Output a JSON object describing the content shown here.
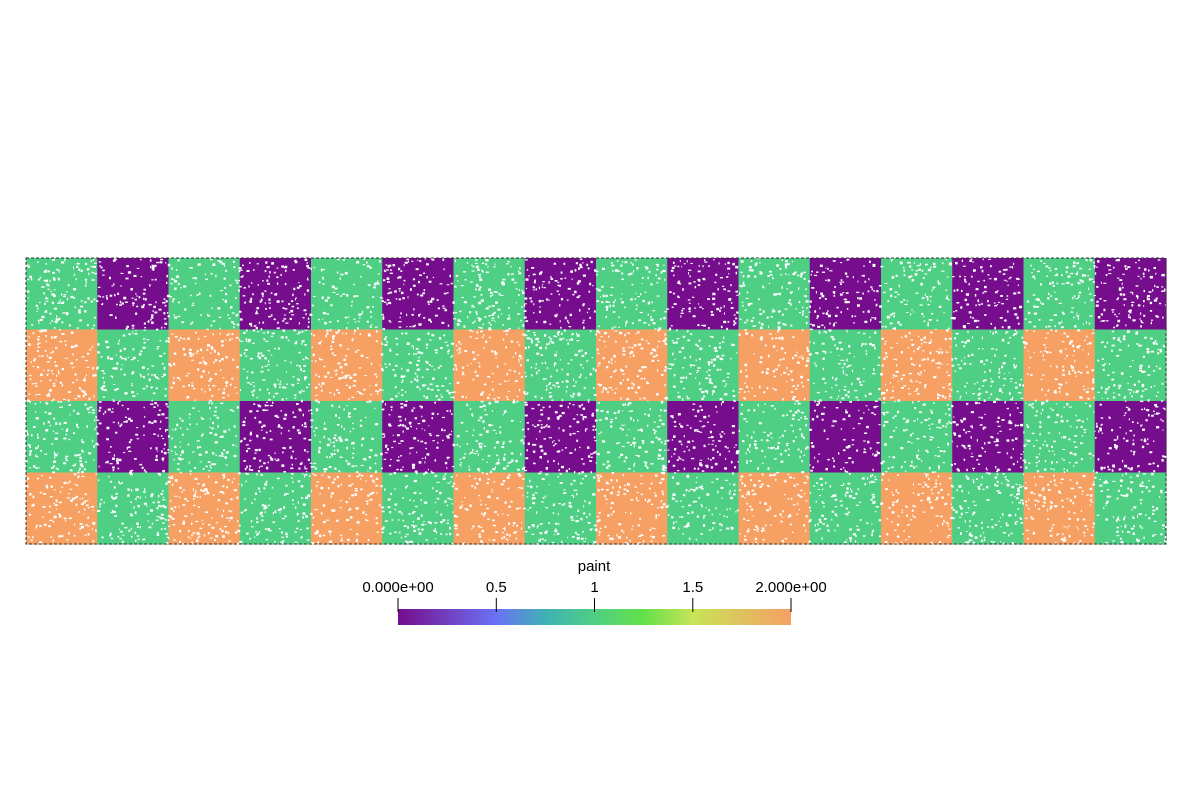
{
  "scene": {
    "field_name": "paint",
    "grid": {
      "columns": 16,
      "rows": 4,
      "cell_values": [
        [
          1,
          0,
          1,
          0,
          1,
          0,
          1,
          0,
          1,
          0,
          1,
          0,
          1,
          0,
          1,
          0
        ],
        [
          2,
          1,
          2,
          1,
          2,
          1,
          2,
          1,
          2,
          1,
          2,
          1,
          2,
          1,
          2,
          1
        ],
        [
          1,
          0,
          1,
          0,
          1,
          0,
          1,
          0,
          1,
          0,
          1,
          0,
          1,
          0,
          1,
          0
        ],
        [
          2,
          1,
          2,
          1,
          2,
          1,
          2,
          1,
          2,
          1,
          2,
          1,
          2,
          1,
          2,
          1
        ]
      ]
    },
    "colors": {
      "value_0": "#760d8c",
      "value_1": "#4fcf84",
      "value_2": "#f6a064",
      "background": "#ffffff",
      "speckle": "#ffffff"
    }
  },
  "color_bar": {
    "title": "paint",
    "range": [
      0,
      2
    ],
    "ticks": [
      {
        "value": 0,
        "label": "0.000e+00"
      },
      {
        "value": 0.5,
        "label": "0.5"
      },
      {
        "value": 1,
        "label": "1"
      },
      {
        "value": 1.5,
        "label": "1.5"
      },
      {
        "value": 2,
        "label": "2.000e+00"
      }
    ],
    "gradient_stops": [
      {
        "value": 0,
        "color": "#760d8c"
      },
      {
        "value": 0.5,
        "color": "#6b72f5"
      },
      {
        "value": 0.75,
        "color": "#3fb1b5"
      },
      {
        "value": 1,
        "color": "#4fcf84"
      },
      {
        "value": 1.25,
        "color": "#62e14a"
      },
      {
        "value": 1.5,
        "color": "#c8e457"
      },
      {
        "value": 2,
        "color": "#f6a064"
      }
    ]
  }
}
